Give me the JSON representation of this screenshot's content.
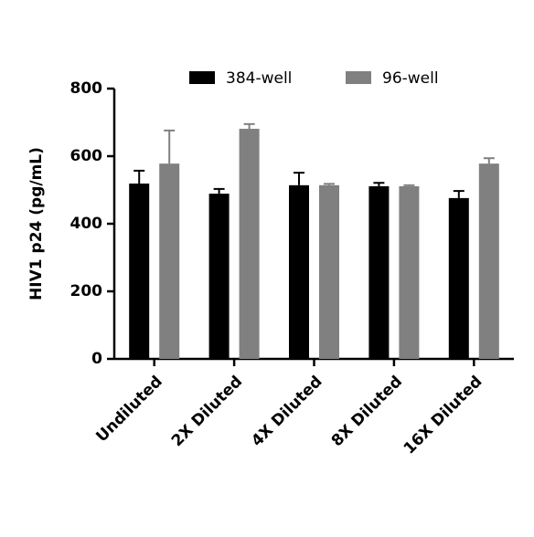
{
  "chart_data": {
    "type": "bar",
    "y_label": "HIV1 p24 (pg/mL)",
    "categories": [
      "Undiluted",
      "2X Diluted",
      "4X Diluted",
      "8X Diluted",
      "16X Diluted"
    ],
    "series": [
      {
        "name": "384-well",
        "color": "#000000",
        "values": [
          519,
          489,
          514,
          511,
          476
        ],
        "errors": [
          38,
          14,
          37,
          10,
          21
        ]
      },
      {
        "name": "96-well",
        "color": "#808080",
        "values": [
          578,
          681,
          514,
          511,
          578
        ],
        "errors": [
          98,
          14,
          4,
          3,
          16
        ]
      }
    ],
    "ylim": [
      0,
      800
    ],
    "yticks": [
      0,
      200,
      400,
      600,
      800
    ]
  }
}
